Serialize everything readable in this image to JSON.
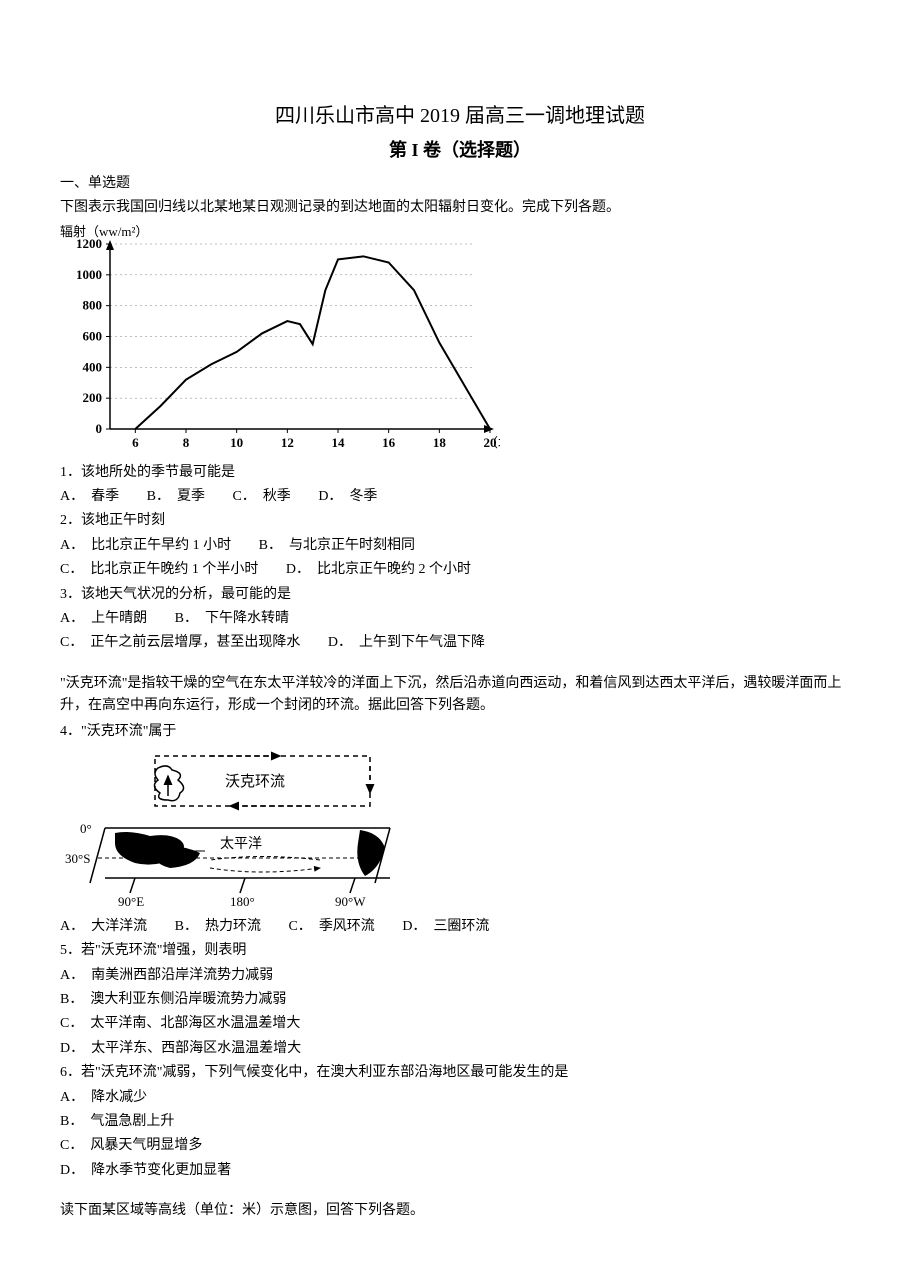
{
  "header": {
    "title": "四川乐山市高中 2019 届高三一调地理试题",
    "subtitle": "第 I 卷（选择题）"
  },
  "section1": {
    "heading": "一、单选题",
    "intro": "下图表示我国回归线以北某地某日观测记录的到达地面的太阳辐射日变化。完成下列各题。"
  },
  "chart1": {
    "type": "line",
    "ylabel": "辐射（ww/m²）",
    "xlabel": "（北京时间/h）",
    "xlim": [
      5,
      20
    ],
    "ylim": [
      0,
      1200
    ],
    "xtick_start": 6,
    "xtick_step": 2,
    "ytick_step": 200,
    "background_color": "#ffffff",
    "line_color": "#000000",
    "axis_color": "#000000",
    "text_color": "#000000",
    "line_width": 2,
    "data_x": [
      6,
      7,
      8,
      9,
      10,
      11,
      12,
      12.5,
      13,
      13.5,
      14,
      15,
      16,
      17,
      18,
      19,
      20
    ],
    "data_y": [
      0,
      150,
      320,
      420,
      500,
      620,
      700,
      680,
      550,
      900,
      1100,
      1120,
      1080,
      900,
      560,
      280,
      0
    ]
  },
  "q1": {
    "number": "1．",
    "text": "该地所处的季节最可能是",
    "opts": {
      "A": "春季",
      "B": "夏季",
      "C": "秋季",
      "D": "冬季"
    }
  },
  "q2": {
    "number": "2．",
    "text": "该地正午时刻",
    "opts": {
      "A": "比北京正午早约 1 小时",
      "B": "与北京正午时刻相同",
      "C": "比北京正午晚约 1 个半小时",
      "D": "比北京正午晚约 2 个小时"
    }
  },
  "q3": {
    "number": "3．",
    "text": "该地天气状况的分析，最可能的是",
    "opts": {
      "A": "上午晴朗",
      "B": "下午降水转晴",
      "C": "正午之前云层增厚，甚至出现降水",
      "D": "上午到下午气温下降"
    }
  },
  "passage2": {
    "text": "\"沃克环流\"是指较干燥的空气在东太平洋较冷的洋面上下沉，然后沿赤道向西运动，和着信风到达西太平洋后，遇较暖洋面而上升，在高空中再向东运行，形成一个封闭的环流。据此回答下列各题。"
  },
  "q4": {
    "number": "4．",
    "text": "\"沃克环流\"属于",
    "opts": {
      "A": "大洋洋流",
      "B": "热力环流",
      "C": "季风环流",
      "D": "三圈环流"
    }
  },
  "figure2": {
    "labels": {
      "walker": "沃克环流",
      "pacific": "太平洋",
      "lat0": "0°",
      "lat30s": "30°S",
      "lon90e": "90°E",
      "lon180": "180°",
      "lon90w": "90°W"
    },
    "colors": {
      "line": "#000000",
      "fill": "#000000",
      "bg": "#ffffff"
    }
  },
  "q5": {
    "number": "5．",
    "text": "若\"沃克环流\"增强，则表明",
    "opts": {
      "A": "南美洲西部沿岸洋流势力减弱",
      "B": "澳大利亚东侧沿岸暖流势力减弱",
      "C": "太平洋南、北部海区水温温差增大",
      "D": "太平洋东、西部海区水温温差增大"
    }
  },
  "q6": {
    "number": "6．",
    "text": "若\"沃克环流\"减弱，下列气候变化中，在澳大利亚东部沿海地区最可能发生的是",
    "opts": {
      "A": "降水减少",
      "B": "气温急剧上升",
      "C": "风暴天气明显增多",
      "D": "降水季节变化更加显著"
    }
  },
  "passage3": {
    "text": "读下面某区域等高线（单位：米）示意图，回答下列各题。"
  }
}
